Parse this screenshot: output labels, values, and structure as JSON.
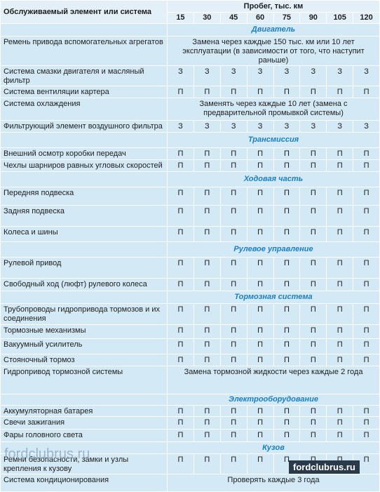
{
  "header": {
    "item_title": "Обслуживаемый элемент или система",
    "mileage_title": "Пробег, тыс. км",
    "mileages": [
      15,
      30,
      45,
      60,
      75,
      90,
      105,
      120
    ]
  },
  "sections": [
    {
      "title": "Двигатель",
      "rows": [
        {
          "item": "Ремень привода вспомогательных агрегатов",
          "note": "Замена через каждые 150 тыс. км или 10 лет эксплуатации (в зависимости от того, что наступит раньше)"
        },
        {
          "item": "Система смазки двигателя и масляный фильтр",
          "cells": [
            "З",
            "З",
            "З",
            "З",
            "З",
            "З",
            "З",
            "З"
          ]
        },
        {
          "item": "Система вентиляции картера",
          "cells": [
            "П",
            "П",
            "П",
            "П",
            "П",
            "П",
            "П",
            "П"
          ]
        },
        {
          "item": "Система охлаждения",
          "note": "Заменять через каждые 10 лет (замена с предварительной промывкой системы)"
        },
        {
          "item": "Фильтрующий элемент воздушного фильтра",
          "cells": [
            "З",
            "З",
            "З",
            "З",
            "З",
            "З",
            "З",
            "З"
          ]
        }
      ]
    },
    {
      "title": "Трансмиссия",
      "rows": [
        {
          "item": "Внешний осмотр коробки передач",
          "cells": [
            "П",
            "П",
            "П",
            "П",
            "П",
            "П",
            "П",
            "П"
          ]
        },
        {
          "item": "Чехлы шарниров равных угловых скоростей",
          "cells": [
            "П",
            "П",
            "П",
            "П",
            "П",
            "П",
            "П",
            "П"
          ]
        }
      ]
    },
    {
      "title": "Ходовая часть",
      "rows": [
        {
          "item": "Передняя подвеска",
          "cells": [
            "П",
            "П",
            "П",
            "П",
            "П",
            "П",
            "П",
            "П"
          ]
        },
        {
          "item": "Задняя подвеска",
          "cells": [
            "П",
            "П",
            "П",
            "П",
            "П",
            "П",
            "П",
            "П"
          ]
        },
        {
          "item": "Колеса и шины",
          "cells": [
            "П",
            "П",
            "П",
            "П",
            "П",
            "П",
            "П",
            "П"
          ]
        }
      ]
    },
    {
      "title": "Рулевое управление",
      "rows": [
        {
          "item": "Рулевой привод",
          "cells": [
            "П",
            "П",
            "П",
            "П",
            "П",
            "П",
            "П",
            "П"
          ]
        },
        {
          "item": "Свободный ход (люфт) рулевого колеса",
          "cells": [
            "П",
            "П",
            "П",
            "П",
            "П",
            "П",
            "П",
            "П"
          ]
        }
      ]
    },
    {
      "title": "Тормозная система",
      "rows": [
        {
          "item": "Трубопроводы гидропривода тормозов и их соединения",
          "cells": [
            "П",
            "П",
            "П",
            "П",
            "П",
            "П",
            "П",
            "П"
          ]
        },
        {
          "item": "Тормозные механизмы",
          "cells": [
            "П",
            "П",
            "П",
            "П",
            "П",
            "П",
            "П",
            "П"
          ]
        },
        {
          "item": "Вакуумный усилитель",
          "cells": [
            "П",
            "П",
            "П",
            "П",
            "П",
            "П",
            "П",
            "П"
          ]
        },
        {
          "item": "Стояночный тормоз",
          "cells": [
            "П",
            "П",
            "П",
            "П",
            "П",
            "П",
            "П",
            "П"
          ]
        },
        {
          "item": "Гидропривод тормозной системы",
          "note": "Замена тормозной жидкости через каждые 2 года"
        }
      ]
    },
    {
      "title": "Электрооборудование",
      "rows": [
        {
          "item": "Аккумуляторная батарея",
          "cells": [
            "П",
            "П",
            "П",
            "П",
            "П",
            "П",
            "П",
            "П"
          ]
        },
        {
          "item": "Свечи зажигания",
          "cells": [
            "П",
            "П",
            "П",
            "П",
            "П",
            "П",
            "П",
            "П"
          ]
        },
        {
          "item": "Фары головного света",
          "cells": [
            "П",
            "П",
            "П",
            "П",
            "П",
            "П",
            "П",
            "П"
          ]
        }
      ]
    },
    {
      "title": "Кузов",
      "rows": [
        {
          "item": "Ремни безопасности, замки и узлы крепления к кузову",
          "cells": [
            "П",
            "П",
            "П",
            "П",
            "П",
            "П",
            "П",
            "П"
          ]
        },
        {
          "item": "Система кондиционирования",
          "note": "Проверять каждые 3 года"
        }
      ]
    }
  ],
  "watermarks": [
    "fordclubrus.ru",
    "fordclubrus.ru"
  ]
}
